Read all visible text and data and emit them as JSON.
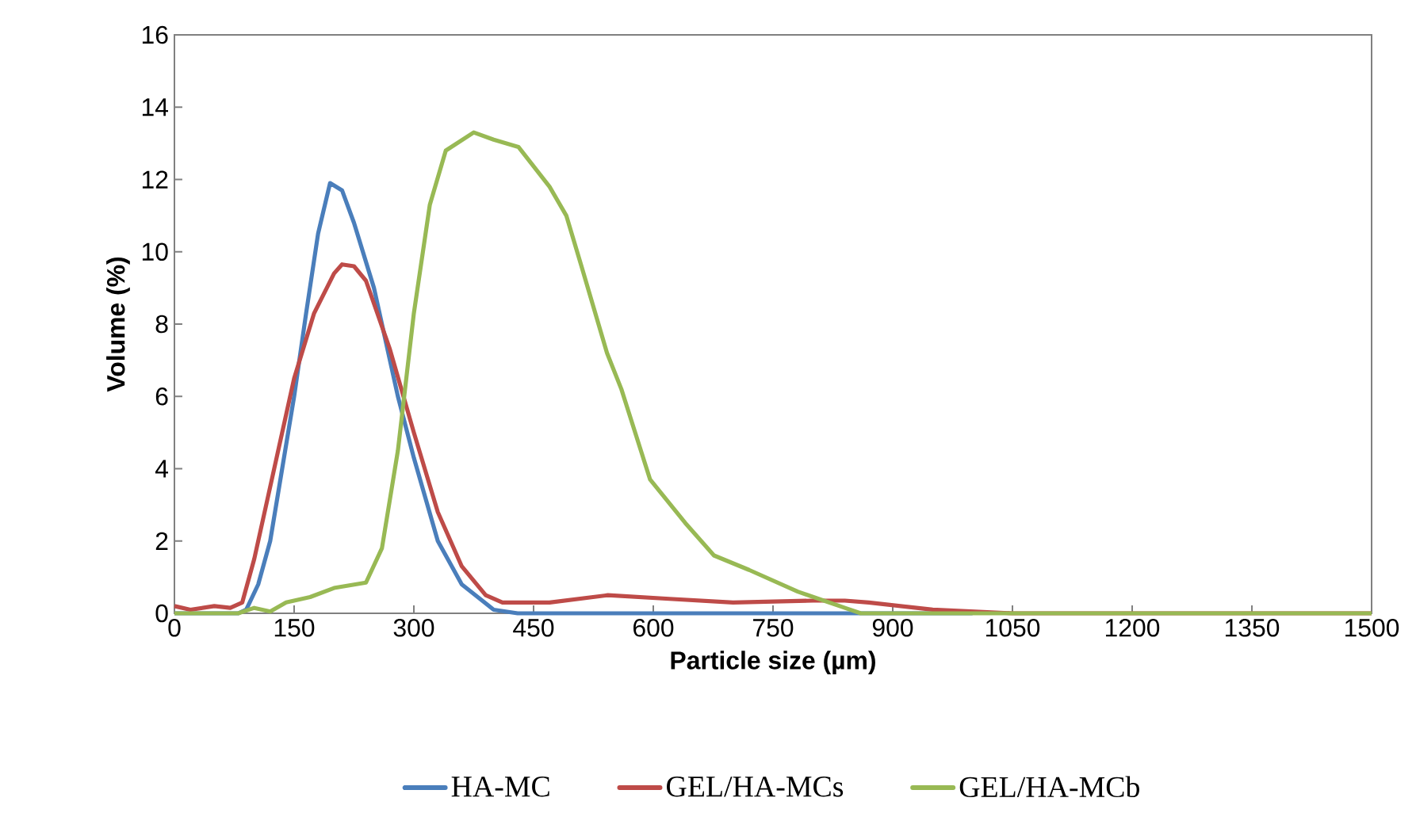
{
  "chart_data": {
    "type": "line",
    "xlabel": "Particle size (µm)",
    "ylabel": "Volume (%)",
    "xlim": [
      0,
      1500
    ],
    "ylim": [
      0,
      16
    ],
    "xticks": [
      0,
      150,
      300,
      450,
      600,
      750,
      900,
      1050,
      1200,
      1350,
      1500
    ],
    "yticks": [
      0,
      2,
      4,
      6,
      8,
      10,
      12,
      14,
      16
    ],
    "grid": false,
    "legend": "bottom",
    "line_style": "solid",
    "marker": "none",
    "series": [
      {
        "name": "HA-MC",
        "color": "#4a7ebb",
        "x": [
          0,
          40,
          80,
          90,
          105,
          120,
          135,
          150,
          165,
          180,
          195,
          210,
          225,
          250,
          280,
          300,
          330,
          360,
          400,
          430,
          500,
          600,
          800,
          1000
        ],
        "values": [
          0,
          0,
          0,
          0.1,
          0.8,
          2,
          4,
          6,
          8.3,
          10.5,
          11.9,
          11.7,
          10.8,
          9,
          6,
          4.3,
          2,
          0.8,
          0.1,
          0,
          0,
          0,
          0,
          0
        ]
      },
      {
        "name": "GEL/HA-MCs",
        "color": "#be4b48",
        "x": [
          0,
          20,
          50,
          70,
          85,
          100,
          125,
          150,
          175,
          200,
          210,
          225,
          240,
          270,
          300,
          330,
          360,
          390,
          411,
          470,
          543,
          620,
          700,
          800,
          840,
          870,
          950,
          1050,
          1200,
          1500
        ],
        "values": [
          0.2,
          0.1,
          0.2,
          0.15,
          0.3,
          1.5,
          4,
          6.5,
          8.3,
          9.4,
          9.65,
          9.6,
          9.2,
          7.3,
          5,
          2.8,
          1.3,
          0.5,
          0.3,
          0.3,
          0.5,
          0.4,
          0.3,
          0.35,
          0.35,
          0.3,
          0.1,
          0,
          0,
          0
        ]
      },
      {
        "name": "GEL/HA-MCb",
        "color": "#98b954",
        "x": [
          0,
          80,
          100,
          120,
          140,
          170,
          200,
          240,
          260,
          280,
          300,
          320,
          340,
          375,
          400,
          431,
          470,
          491,
          510,
          542,
          560,
          596,
          640,
          676,
          720,
          781,
          840,
          860,
          1000,
          1200,
          1500
        ],
        "values": [
          0,
          0,
          0.15,
          0.05,
          0.3,
          0.45,
          0.7,
          0.85,
          1.8,
          4.5,
          8.3,
          11.3,
          12.8,
          13.3,
          13.1,
          12.9,
          11.8,
          11,
          9.6,
          7.2,
          6.2,
          3.7,
          2.5,
          1.6,
          1.2,
          0.6,
          0.15,
          0,
          0,
          0,
          0
        ]
      }
    ]
  }
}
